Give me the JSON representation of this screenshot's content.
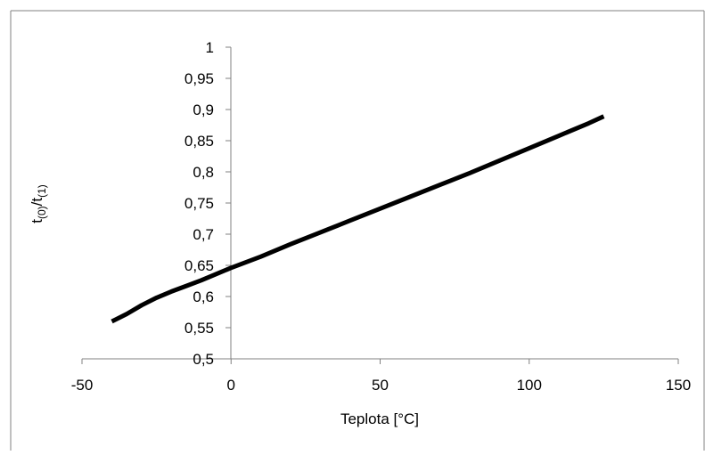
{
  "chart_data": {
    "type": "line",
    "title": "",
    "xlabel": "Teplota [°C]",
    "ylabel": {
      "t1": "t",
      "s1": "(0)",
      "slash": "/t",
      "s2": "(1)"
    },
    "xlim": [
      -50,
      150
    ],
    "ylim": [
      0.5,
      1
    ],
    "x_ticks": [
      -50,
      0,
      50,
      100,
      150
    ],
    "x_tick_labels": [
      "-50",
      "0",
      "50",
      "100",
      "150"
    ],
    "y_ticks": [
      0.5,
      0.55,
      0.6,
      0.65,
      0.7,
      0.75,
      0.8,
      0.85,
      0.9,
      0.95,
      1
    ],
    "y_tick_labels": [
      "0,5",
      "0,55",
      "0,6",
      "0,65",
      "0,7",
      "0,75",
      "0,8",
      "0,85",
      "0,9",
      "0,95",
      "1"
    ],
    "grid": false,
    "legend": "none",
    "series": [
      {
        "color": "#000000",
        "x": [
          -40,
          -35,
          -30,
          -25,
          -20,
          -15,
          -10,
          -5,
          0,
          10,
          20,
          30,
          40,
          50,
          60,
          70,
          80,
          90,
          100,
          110,
          120,
          125
        ],
        "y": [
          0.56,
          0.572,
          0.586,
          0.598,
          0.608,
          0.617,
          0.626,
          0.636,
          0.646,
          0.664,
          0.684,
          0.703,
          0.722,
          0.741,
          0.76,
          0.779,
          0.798,
          0.818,
          0.838,
          0.858,
          0.878,
          0.889
        ]
      }
    ]
  }
}
